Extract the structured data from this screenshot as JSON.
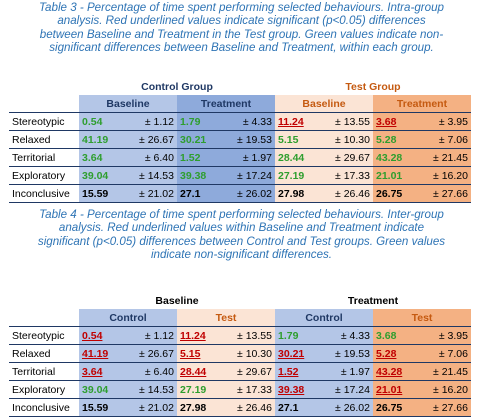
{
  "table3": {
    "caption_lines": [
      "Table 3 - Percentage of time spent performing selected behaviours. Intra-group",
      "analysis. Red underlined values indicate significant (p<0.05) differences",
      "between Baseline and Treatment in the Test group. Green values indicate non-",
      "significant differences between Baseline and Treatment, within each group."
    ],
    "group_headers": [
      "Control Group",
      "Test Group"
    ],
    "sub_headers": [
      "Baseline",
      "Treatment",
      "Baseline",
      "Treatment"
    ],
    "rows": [
      {
        "label": "Stereotypic",
        "cells": [
          {
            "v": "0.54",
            "sd": "± 1.12",
            "style": "ns"
          },
          {
            "v": "1.79",
            "sd": "± 4.33",
            "style": "ns"
          },
          {
            "v": "11.24",
            "sd": "± 13.55",
            "style": "sig"
          },
          {
            "v": "3.68",
            "sd": "± 3.95",
            "style": "sig"
          }
        ]
      },
      {
        "label": "Relaxed",
        "cells": [
          {
            "v": "41.19",
            "sd": "± 26.67",
            "style": "ns"
          },
          {
            "v": "30.21",
            "sd": "± 19.53",
            "style": "ns"
          },
          {
            "v": "5.15",
            "sd": "± 10.30",
            "style": "ns"
          },
          {
            "v": "5.28",
            "sd": "± 7.06",
            "style": "ns"
          }
        ]
      },
      {
        "label": "Territorial",
        "cells": [
          {
            "v": "3.64",
            "sd": "± 6.40",
            "style": "ns"
          },
          {
            "v": "1.52",
            "sd": "± 1.97",
            "style": "ns"
          },
          {
            "v": "28.44",
            "sd": "± 29.67",
            "style": "ns"
          },
          {
            "v": "43.28",
            "sd": "± 21.45",
            "style": "ns"
          }
        ]
      },
      {
        "label": "Exploratory",
        "cells": [
          {
            "v": "39.04",
            "sd": "± 14.53",
            "style": "ns"
          },
          {
            "v": "39.38",
            "sd": "± 17.24",
            "style": "ns"
          },
          {
            "v": "27.19",
            "sd": "± 17.33",
            "style": "ns"
          },
          {
            "v": "21.01",
            "sd": "± 16.20",
            "style": "ns"
          }
        ]
      },
      {
        "label": "Inconclusive",
        "cells": [
          {
            "v": "15.59",
            "sd": "± 21.02",
            "style": "neu"
          },
          {
            "v": "27.1",
            "sd": "± 26.02",
            "style": "neu"
          },
          {
            "v": "27.98",
            "sd": "± 26.46",
            "style": "neu"
          },
          {
            "v": "26.75",
            "sd": "± 27.66",
            "style": "neu"
          }
        ]
      }
    ]
  },
  "table4": {
    "caption_lines": [
      "Table 4 - Percentage of time spent performing selected behaviours. Inter-group",
      "analysis. Red underlined values within Baseline and Treatment indicate",
      "significant (p<0.05) differences between Control and Test groups. Green values",
      "indicate non-significant differences."
    ],
    "group_headers": [
      "Baseline",
      "Treatment"
    ],
    "sub_headers": [
      "Control",
      "Test",
      "Control",
      "Test"
    ],
    "rows": [
      {
        "label": "Stereotypic",
        "cells": [
          {
            "v": "0.54",
            "sd": "± 1.12",
            "style": "sig"
          },
          {
            "v": "11.24",
            "sd": "± 13.55",
            "style": "sig"
          },
          {
            "v": "1.79",
            "sd": "± 4.33",
            "style": "ns"
          },
          {
            "v": "3.68",
            "sd": "± 3.95",
            "style": "ns"
          }
        ]
      },
      {
        "label": "Relaxed",
        "cells": [
          {
            "v": "41.19",
            "sd": "± 26.67",
            "style": "sig"
          },
          {
            "v": "5.15",
            "sd": "± 10.30",
            "style": "sig"
          },
          {
            "v": "30.21",
            "sd": "± 19.53",
            "style": "sig"
          },
          {
            "v": "5.28",
            "sd": "± 7.06",
            "style": "sig"
          }
        ]
      },
      {
        "label": "Territorial",
        "cells": [
          {
            "v": "3.64",
            "sd": "± 6.40",
            "style": "sig"
          },
          {
            "v": "28.44",
            "sd": "± 29.67",
            "style": "sig"
          },
          {
            "v": "1.52",
            "sd": "± 1.97",
            "style": "sig"
          },
          {
            "v": "43.28",
            "sd": "± 21.45",
            "style": "sig"
          }
        ]
      },
      {
        "label": "Exploratory",
        "cells": [
          {
            "v": "39.04",
            "sd": "± 14.53",
            "style": "ns"
          },
          {
            "v": "27.19",
            "sd": "± 17.33",
            "style": "ns"
          },
          {
            "v": "39.38",
            "sd": "± 17.24",
            "style": "sig"
          },
          {
            "v": "21.01",
            "sd": "± 16.20",
            "style": "sig"
          }
        ]
      },
      {
        "label": "Inconclusive",
        "cells": [
          {
            "v": "15.59",
            "sd": "± 21.02",
            "style": "neu"
          },
          {
            "v": "27.98",
            "sd": "± 26.46",
            "style": "neu"
          },
          {
            "v": "27.1",
            "sd": "± 26.02",
            "style": "neu"
          },
          {
            "v": "26.75",
            "sd": "± 27.66",
            "style": "neu"
          }
        ]
      }
    ]
  },
  "colors": {
    "caption": "#2e74b5",
    "control_light": "#b4c6e7",
    "control_dark": "#8eaadb",
    "test_light": "#fbe4d5",
    "test_dark": "#f4b183",
    "significant": "#c00000",
    "non_significant": "#2e9e2e"
  }
}
